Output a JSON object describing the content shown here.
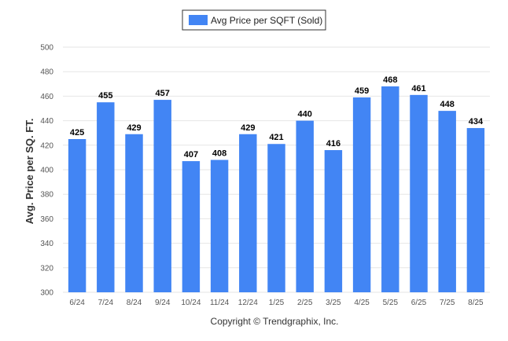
{
  "chart_data": {
    "type": "bar",
    "categories": [
      "6/24",
      "7/24",
      "8/24",
      "9/24",
      "10/24",
      "11/24",
      "12/24",
      "1/25",
      "2/25",
      "3/25",
      "4/25",
      "5/25",
      "6/25",
      "7/25",
      "8/25"
    ],
    "series": [
      {
        "name": "Avg Price per SQFT (Sold)",
        "values": [
          425,
          455,
          429,
          457,
          407,
          408,
          429,
          421,
          440,
          416,
          459,
          468,
          461,
          448,
          434
        ],
        "color": "#4285f4"
      }
    ],
    "title": "",
    "xlabel": "",
    "ylabel": "Avg. Price per SQ. FT.",
    "ylim": [
      300,
      500
    ],
    "yticks": [
      300,
      320,
      340,
      360,
      380,
      400,
      420,
      440,
      460,
      480,
      500
    ],
    "grid": true,
    "legend_position": "top-center",
    "data_labels": true
  },
  "footer": {
    "copyright": "Copyright © Trendgraphix, Inc."
  }
}
